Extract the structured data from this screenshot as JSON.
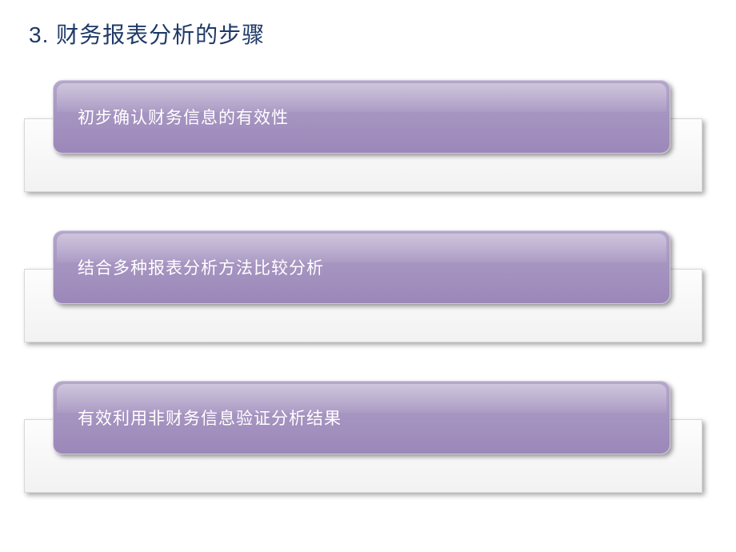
{
  "slide": {
    "title": "3. 财务报表分析的步骤",
    "title_color": "#1f3a68",
    "title_fontsize": 28,
    "background_color": "#ffffff"
  },
  "steps": [
    {
      "label": "初步确认财务信息的有效性"
    },
    {
      "label": "结合多种报表分析方法比较分析"
    },
    {
      "label": "有效利用非财务信息验证分析结果"
    }
  ],
  "style": {
    "card_gradient_top": "#b5a7cb",
    "card_gradient_mid": "#a593c0",
    "card_gradient_bottom": "#9b88b9",
    "card_border": "#d0c8de",
    "card_radius": 12,
    "card_text_color": "#ffffff",
    "card_text_fontsize": 21,
    "panel_bg_top": "#fdfdfd",
    "panel_bg_bottom": "#f2f2f2",
    "panel_border": "#d8d8d8",
    "shadow": "3px 3px 6px rgba(0,0,0,0.35)"
  }
}
